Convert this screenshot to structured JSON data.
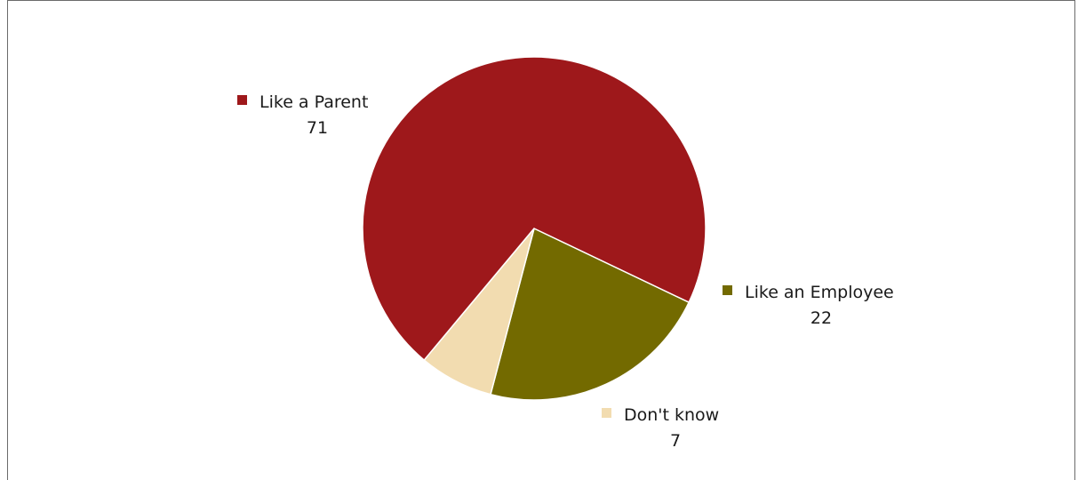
{
  "chart_data": {
    "type": "pie",
    "title": "",
    "slices": [
      {
        "label": "Like a Parent",
        "value": 71,
        "color": "#9e181b"
      },
      {
        "label": "Like an Employee",
        "value": 22,
        "color": "#736a00"
      },
      {
        "label": "Don't know",
        "value": 7,
        "color": "#f2dcb0"
      }
    ],
    "value_labels": [
      "71",
      "22",
      "7"
    ],
    "legend_placement": "inline-labels",
    "slice_border_color": "#ffffff"
  }
}
